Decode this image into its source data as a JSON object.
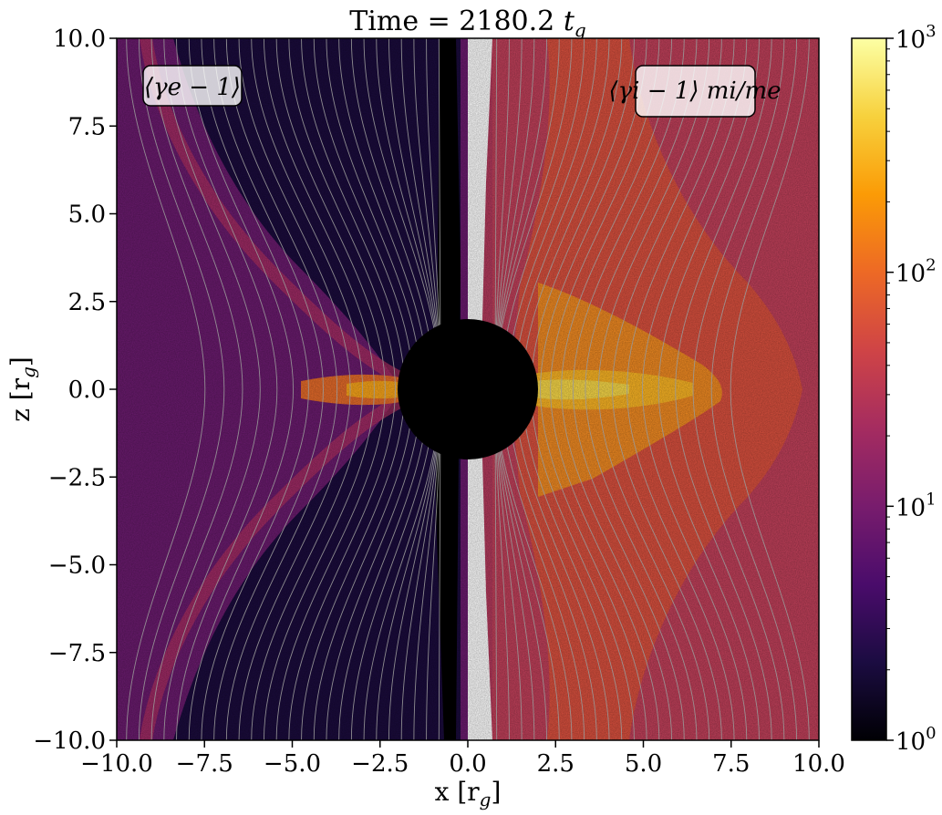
{
  "chart_data": {
    "type": "heatmap",
    "title": "Time = 2180.2",
    "title_time_unit": "t",
    "title_time_unit_sub": "g",
    "xlabel": "x [r",
    "xlabel_sub": "g",
    "xlabel_close": "]",
    "ylabel": "z [r",
    "ylabel_sub": "g",
    "ylabel_close": "]",
    "xlim": [
      -10.0,
      10.0
    ],
    "ylim": [
      -10.0,
      10.0
    ],
    "xticks": [
      -10.0,
      -7.5,
      -5.0,
      -2.5,
      0.0,
      2.5,
      5.0,
      7.5,
      10.0
    ],
    "xtick_labels": [
      "−10.0",
      "−7.5",
      "−5.0",
      "−2.5",
      "0.0",
      "2.5",
      "5.0",
      "7.5",
      "10.0"
    ],
    "yticks": [
      10.0,
      7.5,
      5.0,
      2.5,
      0.0,
      -2.5,
      -5.0,
      -7.5,
      -10.0
    ],
    "ytick_labels": [
      "10.0",
      "7.5",
      "5.0",
      "2.5",
      "0.0",
      "−2.5",
      "−5.0",
      "−7.5",
      "−10.0"
    ],
    "colorbar": {
      "scale": "log",
      "range": [
        1,
        1000
      ],
      "ticks": [
        1,
        10,
        100,
        1000
      ],
      "tick_exponents": [
        "0",
        "1",
        "2",
        "3"
      ],
      "tick_base": "10",
      "colormap": "inferno"
    },
    "black_hole_radius": 2.0,
    "annotations": {
      "left": "⟨γe − 1⟩",
      "right": "⟨γi − 1⟩ mi/me"
    },
    "colors": {
      "black_hole": "#000000",
      "contour": "#9a9a9a",
      "annotation_box_bg": "#ffffff",
      "colormap_stops": [
        "#000004",
        "#1b0c41",
        "#4a0c6b",
        "#781c6d",
        "#a52c60",
        "#cf4446",
        "#ed6925",
        "#fb9b06",
        "#f7d13d",
        "#fcffa4"
      ]
    }
  }
}
